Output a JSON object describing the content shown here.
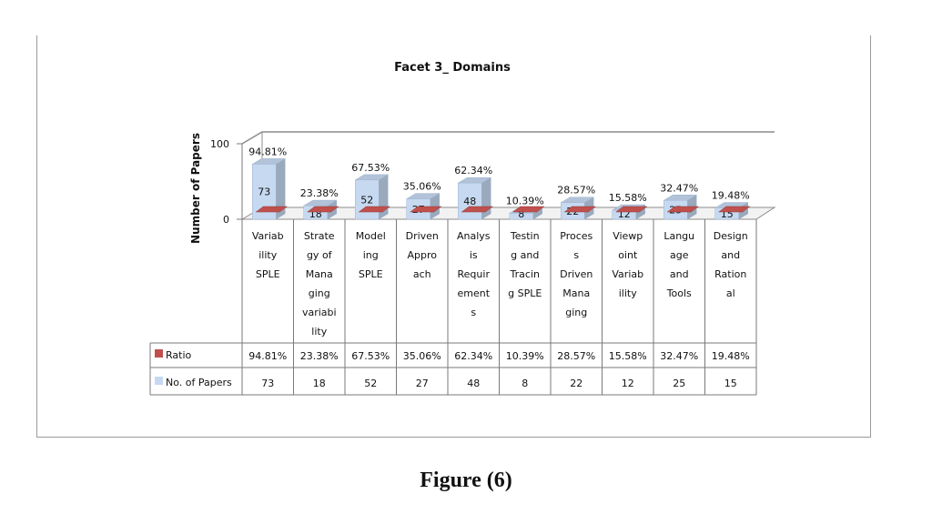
{
  "figure_caption": "Figure (6)",
  "chart_data": {
    "type": "bar",
    "title": "Facet 3_ Domains",
    "ylabel": "Number of Papers",
    "xlabel": "",
    "ylim": [
      0,
      100
    ],
    "yticks": [
      "0",
      "100"
    ],
    "categories": [
      [
        "Variab",
        "ility",
        "SPLE"
      ],
      [
        "Strate",
        "gy of",
        "Mana",
        "ging",
        "variabi",
        "lity"
      ],
      [
        "Model",
        "ing",
        "SPLE"
      ],
      [
        "Driven",
        "Appro",
        "ach"
      ],
      [
        "Analys",
        "is",
        "Requir",
        "ement",
        "s"
      ],
      [
        "Testin",
        "g and",
        "Tracin",
        "g SPLE"
      ],
      [
        "Proces",
        "s",
        "Driven",
        "Mana",
        "ging"
      ],
      [
        "Viewp",
        "oint",
        "Variab",
        "ility"
      ],
      [
        "Langu",
        "age",
        "and",
        "Tools"
      ],
      [
        "Design",
        "and",
        "Ration",
        "al"
      ]
    ],
    "series": [
      {
        "name": "Ratio",
        "color": "#c0504d",
        "values": [
          0.9481,
          0.2338,
          0.6753,
          0.3506,
          0.6234,
          0.1039,
          0.2857,
          0.1558,
          0.3247,
          0.1948
        ],
        "labels": [
          "94.81%",
          "23.38%",
          "67.53%",
          "35.06%",
          "62.34%",
          "10.39%",
          "28.57%",
          "15.58%",
          "32.47%",
          "19.48%"
        ]
      },
      {
        "name": "No. of Papers",
        "color": "#c6d9f1",
        "values": [
          73,
          18,
          52,
          27,
          48,
          8,
          22,
          12,
          25,
          15
        ],
        "labels": [
          "73",
          "18",
          "52",
          "27",
          "48",
          "8",
          "22",
          "12",
          "25",
          "15"
        ]
      }
    ],
    "legend": "data-table",
    "grid": false
  }
}
